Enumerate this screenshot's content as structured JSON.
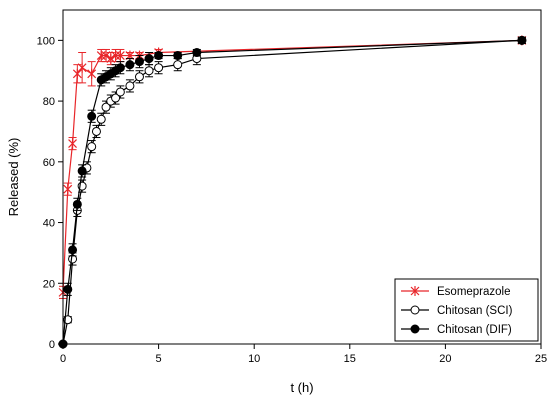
{
  "chart_data": {
    "type": "line",
    "title": "",
    "xlabel": "t (h)",
    "ylabel": "Released (%)",
    "xlim": [
      0,
      25
    ],
    "ylim": [
      0,
      110
    ],
    "xticks": [
      0,
      5,
      10,
      15,
      20,
      25
    ],
    "yticks": [
      0,
      20,
      40,
      60,
      80,
      100
    ],
    "xtick_labels": [
      "0",
      "5",
      "10",
      "15",
      "20",
      "25"
    ],
    "ytick_labels": [
      "0",
      "20",
      "40",
      "60",
      "80",
      "100"
    ],
    "grid": false,
    "legend_position": "bottom-right",
    "series": [
      {
        "name": "Esomeprazole",
        "color": "#e8262a",
        "marker": "x",
        "x": [
          0,
          0.25,
          0.5,
          0.75,
          1,
          1.5,
          2,
          2.25,
          2.5,
          2.75,
          3,
          3.5,
          4,
          5,
          24
        ],
        "y": [
          17,
          51,
          66,
          89,
          91,
          89,
          95,
          95,
          94,
          95,
          95,
          95,
          95,
          96,
          100
        ],
        "err": [
          2,
          2,
          2,
          3,
          5,
          4,
          2,
          2,
          2,
          2,
          2,
          1,
          1,
          1,
          1
        ]
      },
      {
        "name": "Chitosan (SCI)",
        "color": "#000000",
        "marker": "open-circle",
        "x": [
          0,
          0.25,
          0.5,
          0.75,
          1,
          1.25,
          1.5,
          1.75,
          2,
          2.25,
          2.5,
          2.75,
          3,
          3.5,
          4,
          4.5,
          5,
          6,
          7,
          24
        ],
        "y": [
          0,
          8,
          28,
          44,
          52,
          58,
          65,
          70,
          74,
          78,
          80,
          81,
          83,
          85,
          88,
          90,
          91,
          92,
          94,
          100
        ],
        "err": [
          0,
          1,
          2,
          2,
          2,
          2,
          2,
          2,
          2,
          2,
          2,
          2,
          2,
          2,
          2,
          2,
          2,
          2,
          2,
          1
        ]
      },
      {
        "name": "Chitosan (DIF)",
        "color": "#000000",
        "marker": "filled-circle",
        "x": [
          0,
          0.25,
          0.5,
          0.75,
          1,
          1.5,
          2,
          2.25,
          2.5,
          2.75,
          3,
          3.5,
          4,
          4.5,
          5,
          6,
          7,
          24
        ],
        "y": [
          0,
          18,
          31,
          46,
          57,
          75,
          87,
          88,
          89,
          90,
          91,
          92,
          93,
          94,
          95,
          95,
          96,
          100
        ],
        "err": [
          0,
          2,
          2,
          2,
          2,
          2,
          2,
          2,
          2,
          2,
          2,
          2,
          2,
          2,
          1,
          1,
          1,
          1
        ]
      }
    ]
  }
}
